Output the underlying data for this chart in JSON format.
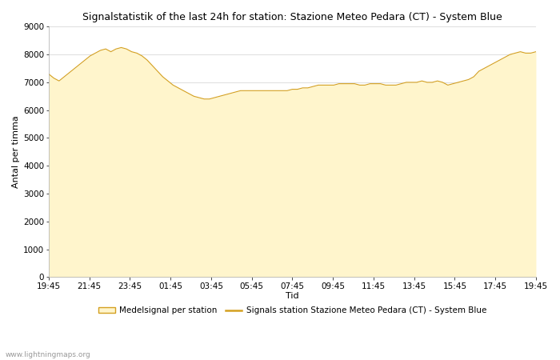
{
  "title": "Signalstatistik of the last 24h for station: Stazione Meteo Pedara (CT) - System Blue",
  "xlabel": "Tid",
  "ylabel": "Antal per timma",
  "ylim": [
    0,
    9000
  ],
  "yticks": [
    0,
    1000,
    2000,
    3000,
    4000,
    5000,
    6000,
    7000,
    8000,
    9000
  ],
  "x_labels": [
    "19:45",
    "21:45",
    "23:45",
    "01:45",
    "03:45",
    "05:45",
    "07:45",
    "09:45",
    "11:45",
    "13:45",
    "15:45",
    "17:45",
    "19:45"
  ],
  "fill_color": "#FFF5CC",
  "line_color": "#D4A020",
  "background_color": "#ffffff",
  "watermark": "www.lightningmaps.org",
  "legend_fill_label": "Medelsignal per station",
  "legend_line_label": "Signals station Stazione Meteo Pedara (CT) - System Blue",
  "values": [
    7300,
    7150,
    7050,
    7200,
    7350,
    7500,
    7650,
    7800,
    7950,
    8050,
    8150,
    8200,
    8100,
    8200,
    8250,
    8200,
    8100,
    8050,
    7950,
    7800,
    7600,
    7400,
    7200,
    7050,
    6900,
    6800,
    6700,
    6600,
    6500,
    6450,
    6400,
    6400,
    6450,
    6500,
    6550,
    6600,
    6650,
    6700,
    6700,
    6700,
    6700,
    6700,
    6700,
    6700,
    6700,
    6700,
    6700,
    6750,
    6750,
    6800,
    6800,
    6850,
    6900,
    6900,
    6900,
    6900,
    6950,
    6950,
    6950,
    6950,
    6900,
    6900,
    6950,
    6950,
    6950,
    6900,
    6900,
    6900,
    6950,
    7000,
    7000,
    7000,
    7050,
    7000,
    7000,
    7050,
    7000,
    6900,
    6950,
    7000,
    7050,
    7100,
    7200,
    7400,
    7500,
    7600,
    7700,
    7800,
    7900,
    8000,
    8050,
    8100,
    8050,
    8050,
    8100
  ]
}
